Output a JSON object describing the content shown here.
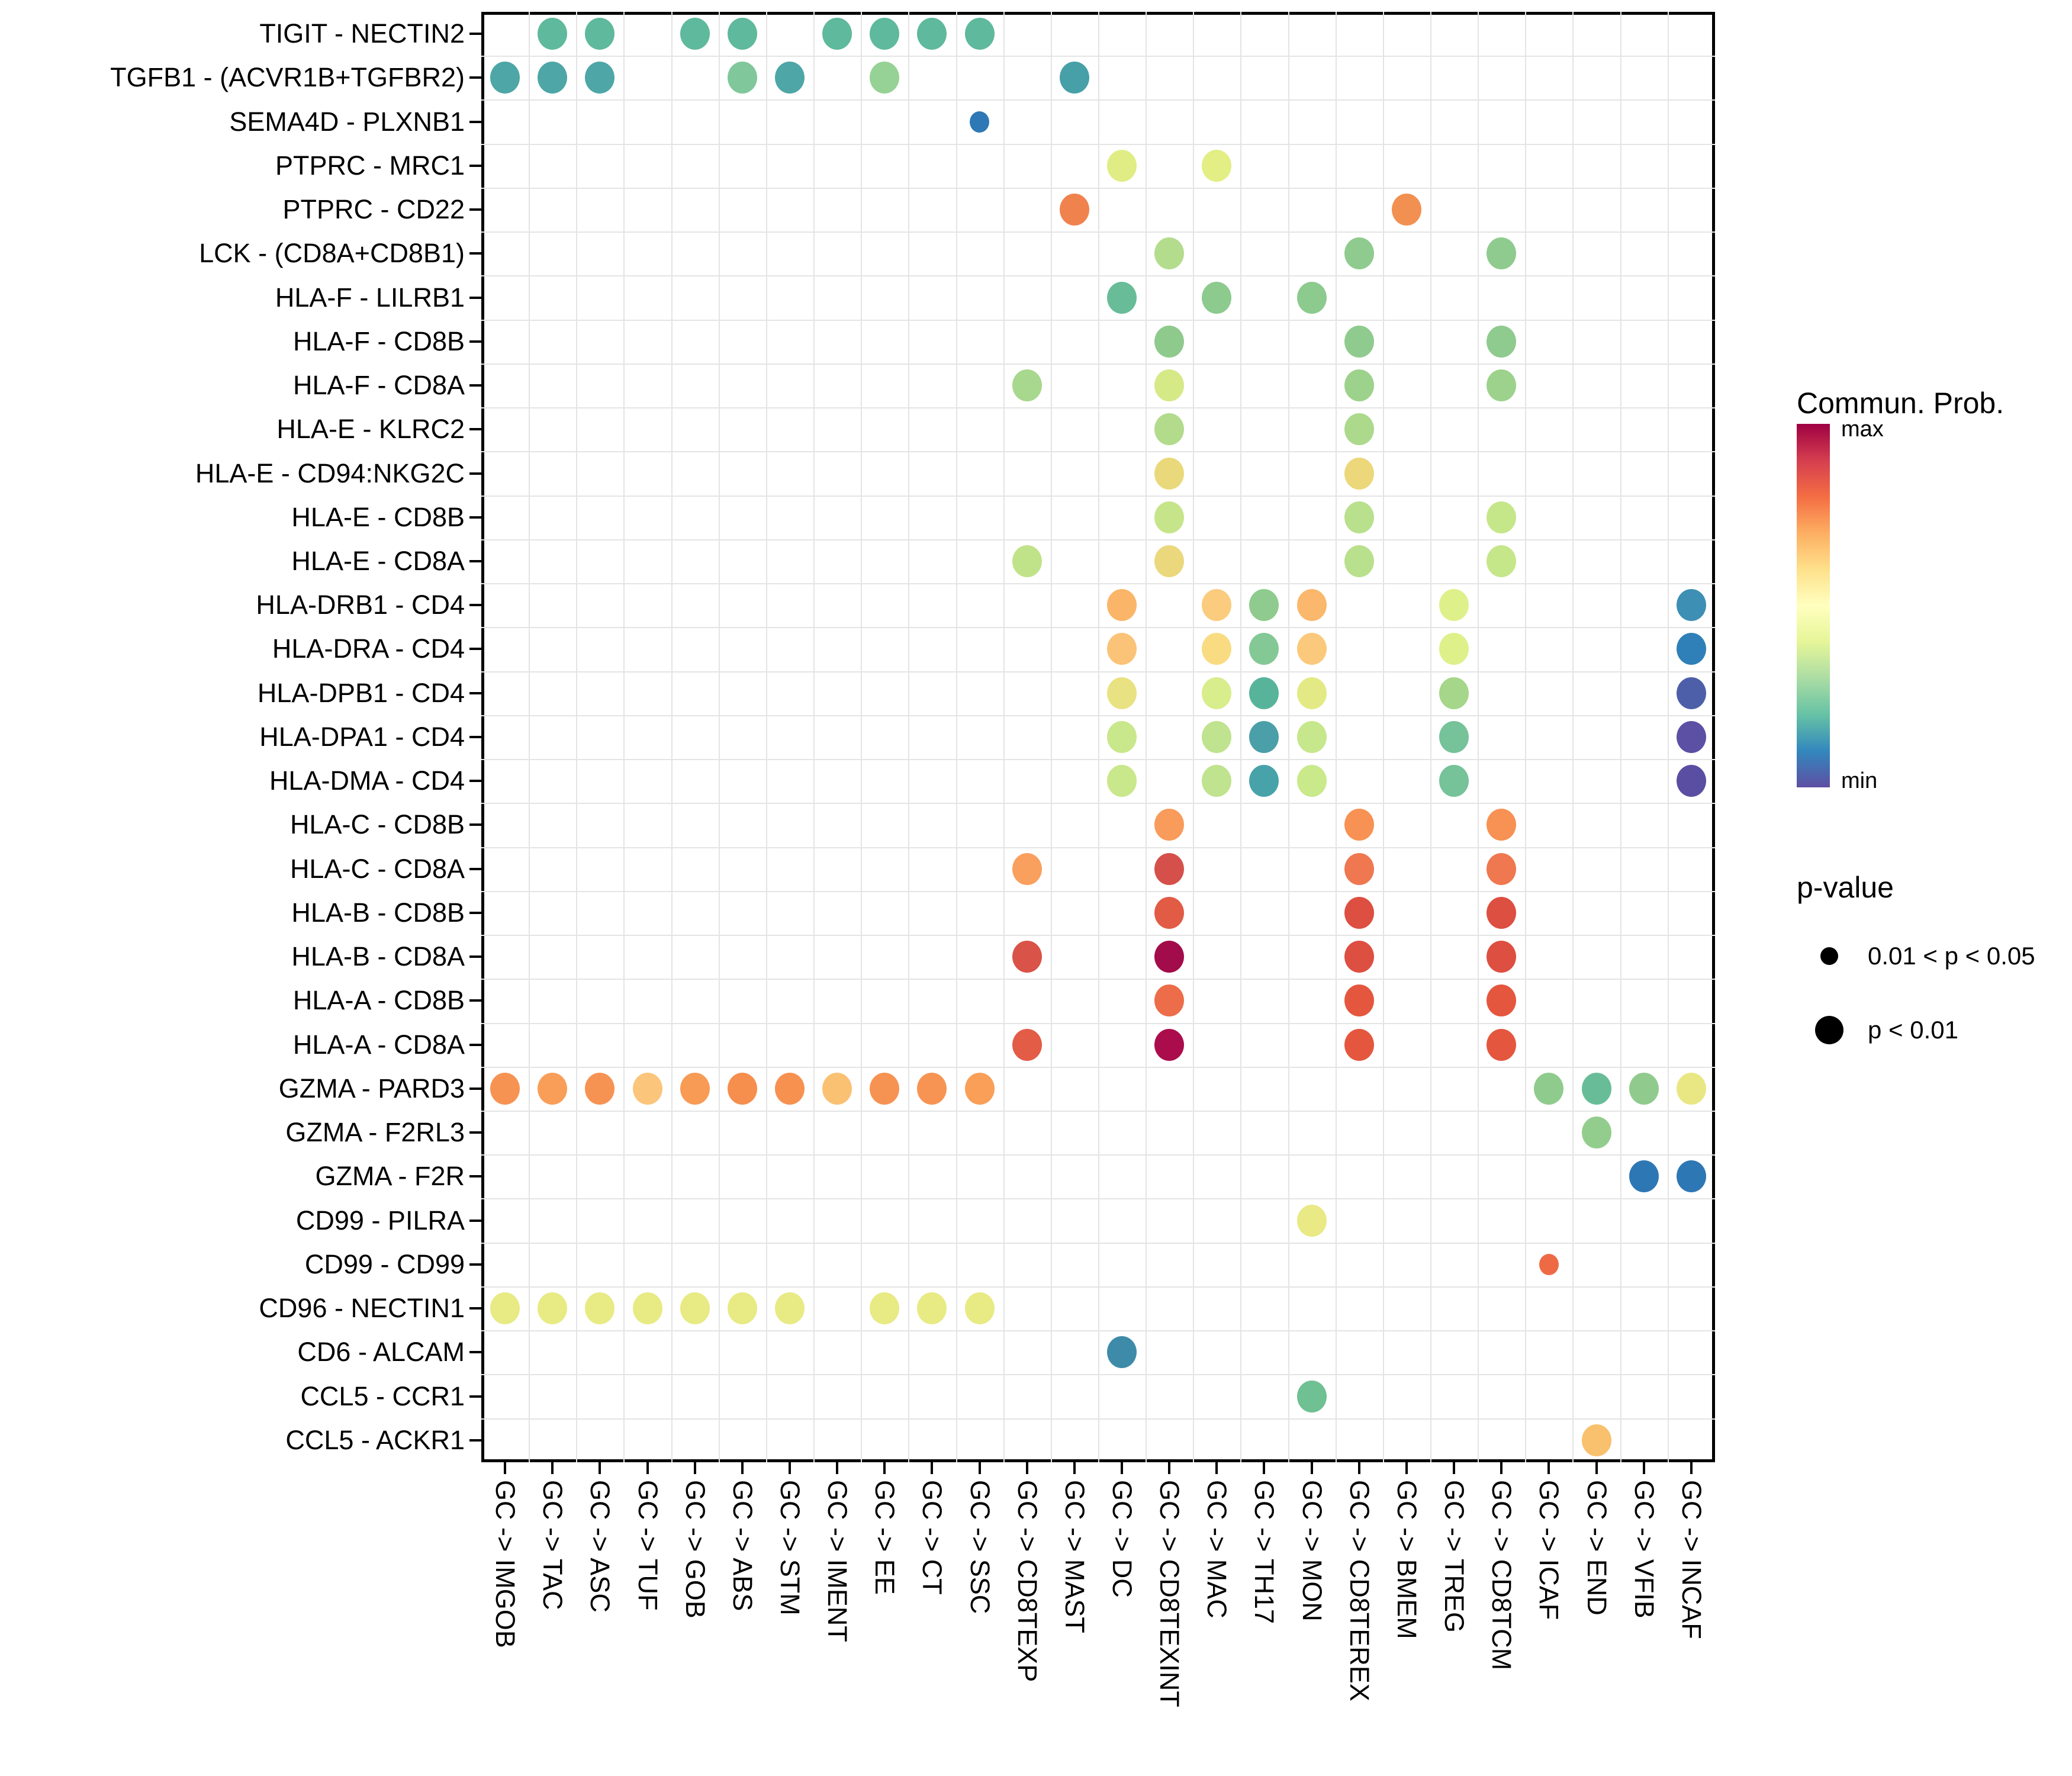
{
  "legend": {
    "colorbar_title": "Commun. Prob.",
    "colorbar_max_label": "max",
    "colorbar_min_label": "min",
    "colorbar_colors": [
      "#9e0142",
      "#d53e4f",
      "#f46d43",
      "#fdae61",
      "#fee08b",
      "#ffffbf",
      "#e6f598",
      "#abdda4",
      "#66c2a5",
      "#3288bd",
      "#5e4fa2"
    ],
    "pvalue_title": "p-value",
    "pvalue_items": [
      {
        "label": "0.01 < p < 0.05",
        "size": "small"
      },
      {
        "label": "p < 0.01",
        "size": "large"
      }
    ]
  },
  "chart_data": {
    "type": "scatter",
    "subtype": "bubble-matrix",
    "title": "",
    "xlabel": "",
    "ylabel": "",
    "grid": "on",
    "color_scale": {
      "name": "Spectral-reversed",
      "min_label": "min",
      "max_label": "max"
    },
    "size_scale": {
      "small": "0.01 < p < 0.05",
      "large": "p < 0.01"
    },
    "x_categories": [
      "GC -> IMGOB",
      "GC -> TAC",
      "GC -> ASC",
      "GC -> TUF",
      "GC -> GOB",
      "GC -> ABS",
      "GC -> STM",
      "GC -> IMENT",
      "GC -> EE",
      "GC -> CT",
      "GC -> SSC",
      "GC -> CD8TEXP",
      "GC -> MAST",
      "GC -> DC",
      "GC -> CD8TEXINT",
      "GC -> MAC",
      "GC -> TH17",
      "GC -> MON",
      "GC -> CD8TEREX",
      "GC -> BMEM",
      "GC -> TREG",
      "GC -> CD8TCM",
      "GC -> ICAF",
      "GC -> END",
      "GC -> VFIB",
      "GC -> INCAF"
    ],
    "y_categories": [
      "TIGIT - NECTIN2",
      "TGFB1 - (ACVR1B+TGFBR2)",
      "SEMA4D - PLXNB1",
      "PTPRC - MRC1",
      "PTPRC - CD22",
      "LCK - (CD8A+CD8B1)",
      "HLA-F - LILRB1",
      "HLA-F - CD8B",
      "HLA-F - CD8A",
      "HLA-E - KLRC2",
      "HLA-E - CD94:NKG2C",
      "HLA-E - CD8B",
      "HLA-E - CD8A",
      "HLA-DRB1 - CD4",
      "HLA-DRA - CD4",
      "HLA-DPB1 - CD4",
      "HLA-DPA1 - CD4",
      "HLA-DMA - CD4",
      "HLA-C - CD8B",
      "HLA-C - CD8A",
      "HLA-B - CD8B",
      "HLA-B - CD8A",
      "HLA-A - CD8B",
      "HLA-A - CD8A",
      "GZMA - PARD3",
      "GZMA - F2RL3",
      "GZMA - F2R",
      "CD99 - PILRA",
      "CD99 - CD99",
      "CD96 - NECTIN1",
      "CD6 - ALCAM",
      "CCL5 - CCR1",
      "CCL5 - ACKR1"
    ],
    "dots": [
      [
        0,
        1,
        "#5fb99c",
        "L"
      ],
      [
        0,
        2,
        "#5fb99c",
        "L"
      ],
      [
        0,
        4,
        "#5fb99c",
        "L"
      ],
      [
        0,
        5,
        "#5fb99c",
        "L"
      ],
      [
        0,
        7,
        "#5fb99c",
        "L"
      ],
      [
        0,
        8,
        "#5fb99c",
        "L"
      ],
      [
        0,
        9,
        "#5fb99c",
        "L"
      ],
      [
        0,
        10,
        "#5fb99c",
        "L"
      ],
      [
        1,
        0,
        "#4ea6a6",
        "L"
      ],
      [
        1,
        1,
        "#4ea6a6",
        "L"
      ],
      [
        1,
        2,
        "#4ea6a6",
        "L"
      ],
      [
        1,
        5,
        "#80c79b",
        "L"
      ],
      [
        1,
        6,
        "#4ea6a6",
        "L"
      ],
      [
        1,
        8,
        "#96d295",
        "L"
      ],
      [
        1,
        12,
        "#47a0a8",
        "L"
      ],
      [
        2,
        10,
        "#2e78b5",
        "S"
      ],
      [
        3,
        13,
        "#e0ed85",
        "L"
      ],
      [
        3,
        15,
        "#e3ee84",
        "L"
      ],
      [
        4,
        12,
        "#f0824e",
        "L"
      ],
      [
        4,
        19,
        "#f29051",
        "L"
      ],
      [
        5,
        14,
        "#b4dc8d",
        "L"
      ],
      [
        5,
        18,
        "#8fcb8e",
        "L"
      ],
      [
        5,
        21,
        "#8fcb8e",
        "L"
      ],
      [
        6,
        13,
        "#68bd98",
        "L"
      ],
      [
        6,
        15,
        "#8cca8e",
        "L"
      ],
      [
        6,
        17,
        "#8cca8e",
        "L"
      ],
      [
        7,
        14,
        "#8fca8d",
        "L"
      ],
      [
        7,
        18,
        "#8fcb8e",
        "L"
      ],
      [
        7,
        21,
        "#8fcb8e",
        "L"
      ],
      [
        8,
        11,
        "#a8d78e",
        "L"
      ],
      [
        8,
        14,
        "#d5e987",
        "L"
      ],
      [
        8,
        18,
        "#9dd28c",
        "L"
      ],
      [
        8,
        21,
        "#9dd28c",
        "L"
      ],
      [
        9,
        14,
        "#b2db8c",
        "L"
      ],
      [
        9,
        18,
        "#acd98c",
        "L"
      ],
      [
        10,
        14,
        "#ead97b",
        "L"
      ],
      [
        10,
        18,
        "#ecd77a",
        "L"
      ],
      [
        11,
        14,
        "#c6e58a",
        "L"
      ],
      [
        11,
        18,
        "#b9e08c",
        "L"
      ],
      [
        11,
        21,
        "#c6e68a",
        "L"
      ],
      [
        12,
        11,
        "#c0e389",
        "L"
      ],
      [
        12,
        14,
        "#ebd87c",
        "L"
      ],
      [
        12,
        18,
        "#b9e08c",
        "L"
      ],
      [
        12,
        21,
        "#c6e68a",
        "L"
      ],
      [
        13,
        13,
        "#fbb569",
        "L"
      ],
      [
        13,
        15,
        "#fbcc7e",
        "L"
      ],
      [
        13,
        16,
        "#8fcb8e",
        "L"
      ],
      [
        13,
        17,
        "#fbb76b",
        "L"
      ],
      [
        13,
        20,
        "#def08a",
        "L"
      ],
      [
        13,
        25,
        "#3d8fb4",
        "L"
      ],
      [
        14,
        13,
        "#fbc377",
        "L"
      ],
      [
        14,
        15,
        "#f9dc82",
        "L"
      ],
      [
        14,
        16,
        "#84c896",
        "L"
      ],
      [
        14,
        17,
        "#fbc97b",
        "L"
      ],
      [
        14,
        20,
        "#def08a",
        "L"
      ],
      [
        14,
        25,
        "#2f80b8",
        "L"
      ],
      [
        15,
        13,
        "#e9e282",
        "L"
      ],
      [
        15,
        15,
        "#d8ed8b",
        "L"
      ],
      [
        15,
        16,
        "#57b49b",
        "L"
      ],
      [
        15,
        17,
        "#e3ea85",
        "L"
      ],
      [
        15,
        20,
        "#a5d689",
        "L"
      ],
      [
        15,
        25,
        "#4d5fa9",
        "L"
      ],
      [
        16,
        13,
        "#c9e78b",
        "L"
      ],
      [
        16,
        15,
        "#bfe38e",
        "L"
      ],
      [
        16,
        16,
        "#4b9fa8",
        "L"
      ],
      [
        16,
        17,
        "#c6e78c",
        "L"
      ],
      [
        16,
        20,
        "#76c299",
        "L"
      ],
      [
        16,
        25,
        "#5b50a4",
        "L"
      ],
      [
        17,
        13,
        "#c9e78b",
        "L"
      ],
      [
        17,
        15,
        "#bfe38e",
        "L"
      ],
      [
        17,
        16,
        "#47a3a9",
        "L"
      ],
      [
        17,
        17,
        "#c9e98b",
        "L"
      ],
      [
        17,
        20,
        "#76c299",
        "L"
      ],
      [
        17,
        25,
        "#5a4ea2",
        "L"
      ],
      [
        18,
        14,
        "#f89b5b",
        "L"
      ],
      [
        18,
        18,
        "#f79254",
        "L"
      ],
      [
        18,
        21,
        "#f79254",
        "L"
      ],
      [
        19,
        11,
        "#f9a05e",
        "L"
      ],
      [
        19,
        14,
        "#d5504a",
        "L"
      ],
      [
        19,
        18,
        "#ef7850",
        "L"
      ],
      [
        19,
        21,
        "#ef7850",
        "L"
      ],
      [
        20,
        14,
        "#e25b45",
        "L"
      ],
      [
        20,
        18,
        "#dd4f41",
        "L"
      ],
      [
        20,
        21,
        "#dd4f41",
        "L"
      ],
      [
        21,
        11,
        "#d95348",
        "L"
      ],
      [
        21,
        14,
        "#a30c4a",
        "L"
      ],
      [
        21,
        18,
        "#dd4f41",
        "L"
      ],
      [
        21,
        21,
        "#dd4f41",
        "L"
      ],
      [
        22,
        14,
        "#ed6c49",
        "L"
      ],
      [
        22,
        18,
        "#e4573e",
        "L"
      ],
      [
        22,
        21,
        "#e4573e",
        "L"
      ],
      [
        23,
        11,
        "#e35c46",
        "L"
      ],
      [
        23,
        14,
        "#ab0d4c",
        "L"
      ],
      [
        23,
        18,
        "#e4573e",
        "L"
      ],
      [
        23,
        21,
        "#e4573e",
        "L"
      ],
      [
        24,
        0,
        "#f79352",
        "L"
      ],
      [
        24,
        1,
        "#f99e58",
        "L"
      ],
      [
        24,
        2,
        "#f79352",
        "L"
      ],
      [
        24,
        3,
        "#fbc57b",
        "L"
      ],
      [
        24,
        4,
        "#f89b55",
        "L"
      ],
      [
        24,
        5,
        "#f68e4e",
        "L"
      ],
      [
        24,
        6,
        "#f79150",
        "L"
      ],
      [
        24,
        7,
        "#fac173",
        "L"
      ],
      [
        24,
        8,
        "#f79352",
        "L"
      ],
      [
        24,
        9,
        "#f79453",
        "L"
      ],
      [
        24,
        10,
        "#f99f58",
        "L"
      ],
      [
        24,
        22,
        "#8fcb8d",
        "L"
      ],
      [
        24,
        23,
        "#68bd98",
        "L"
      ],
      [
        24,
        24,
        "#90cb8d",
        "L"
      ],
      [
        24,
        25,
        "#e9e783",
        "L"
      ],
      [
        25,
        23,
        "#93cd8d",
        "L"
      ],
      [
        26,
        24,
        "#2e77b5",
        "L"
      ],
      [
        26,
        25,
        "#2e77b5",
        "L"
      ],
      [
        27,
        17,
        "#e9e985",
        "L"
      ],
      [
        28,
        22,
        "#ee6a45",
        "S"
      ],
      [
        29,
        0,
        "#e8ea84",
        "L"
      ],
      [
        29,
        1,
        "#e8ea84",
        "L"
      ],
      [
        29,
        2,
        "#e8ea84",
        "L"
      ],
      [
        29,
        3,
        "#e8ea84",
        "L"
      ],
      [
        29,
        4,
        "#e8ea84",
        "L"
      ],
      [
        29,
        5,
        "#e8ea84",
        "L"
      ],
      [
        29,
        6,
        "#e8ea84",
        "L"
      ],
      [
        29,
        8,
        "#e8ea84",
        "L"
      ],
      [
        29,
        9,
        "#e8ea84",
        "L"
      ],
      [
        29,
        10,
        "#e8ea84",
        "L"
      ],
      [
        30,
        13,
        "#3d8ba8",
        "L"
      ],
      [
        31,
        17,
        "#6fc092",
        "L"
      ],
      [
        32,
        23,
        "#f9c06d",
        "L"
      ]
    ]
  }
}
